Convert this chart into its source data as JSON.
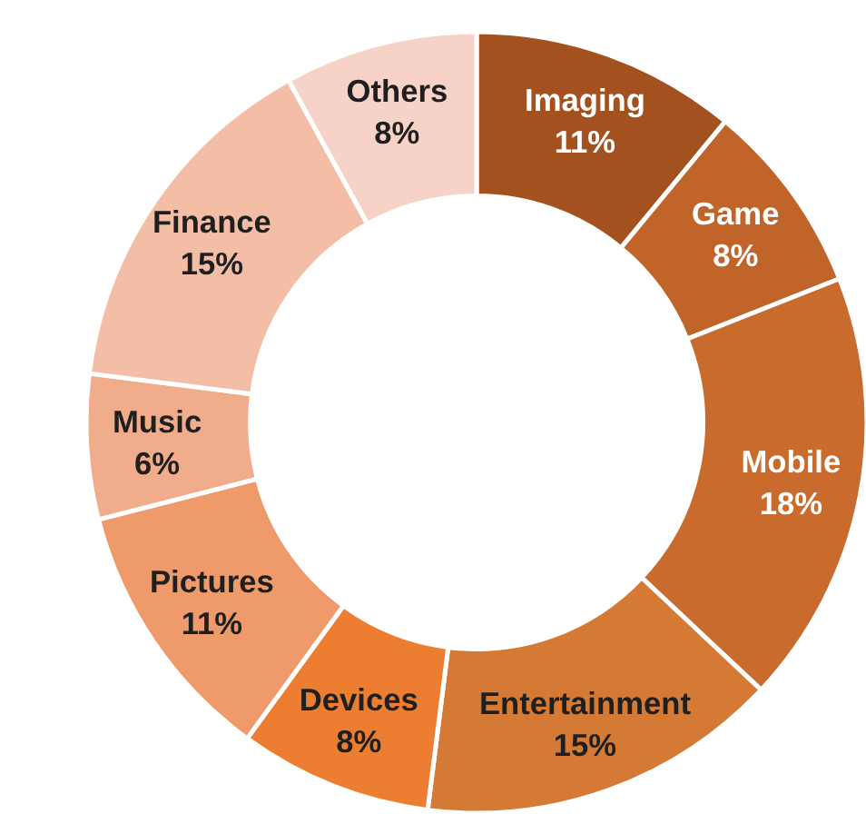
{
  "chart_data": {
    "type": "donut",
    "categories": [
      "Imaging",
      "Game",
      "Mobile",
      "Entertainment",
      "Devices",
      "Pictures",
      "Music",
      "Finance",
      "Others"
    ],
    "values": [
      11,
      8,
      18,
      15,
      8,
      11,
      6,
      15,
      8
    ],
    "value_labels": [
      "11%",
      "8%",
      "18%",
      "15%",
      "8%",
      "11%",
      "6%",
      "15%",
      "8%"
    ],
    "colors": [
      "#a3521f",
      "#c0642a",
      "#c96b2c",
      "#d57a34",
      "#ed7d31",
      "#ef9a6a",
      "#f1ac8c",
      "#f4bea6",
      "#f7d3c7"
    ],
    "legend": false
  }
}
